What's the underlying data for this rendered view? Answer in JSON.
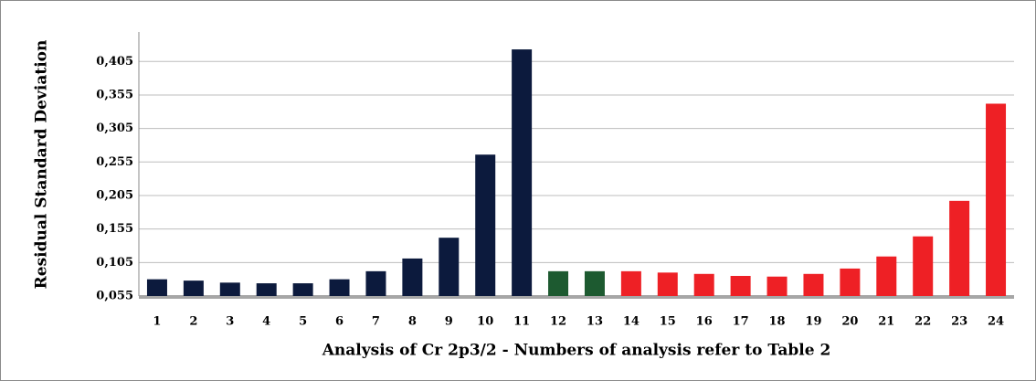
{
  "chart_data": {
    "type": "bar",
    "x_label": "Analysis of Cr 2p3/2 - Numbers of analysis refer to Table 2",
    "y_label": "Residual Standard Deviation",
    "categories": [
      "1",
      "2",
      "3",
      "4",
      "5",
      "6",
      "7",
      "8",
      "9",
      "10",
      "11",
      "12",
      "13",
      "14",
      "15",
      "16",
      "17",
      "18",
      "19",
      "20",
      "21",
      "22",
      "23",
      "24"
    ],
    "values": [
      0.08,
      0.078,
      0.075,
      0.074,
      0.074,
      0.08,
      0.092,
      0.111,
      0.142,
      0.266,
      0.423,
      0.092,
      0.092,
      0.092,
      0.09,
      0.088,
      0.085,
      0.084,
      0.088,
      0.096,
      0.114,
      0.144,
      0.197,
      0.342
    ],
    "colors": [
      "#0c1a3d",
      "#0c1a3d",
      "#0c1a3d",
      "#0c1a3d",
      "#0c1a3d",
      "#0c1a3d",
      "#0c1a3d",
      "#0c1a3d",
      "#0c1a3d",
      "#0c1a3d",
      "#0c1a3d",
      "#1d5a30",
      "#1d5a30",
      "#ee2025",
      "#ee2025",
      "#ee2025",
      "#ee2025",
      "#ee2025",
      "#ee2025",
      "#ee2025",
      "#ee2025",
      "#ee2025",
      "#ee2025",
      "#ee2025"
    ],
    "ylim": [
      0.055,
      0.449
    ],
    "yticks": [
      {
        "value": 0.055,
        "label": "0,055"
      },
      {
        "value": 0.105,
        "label": "0,105"
      },
      {
        "value": 0.155,
        "label": "0,155"
      },
      {
        "value": 0.205,
        "label": "0,205"
      },
      {
        "value": 0.255,
        "label": "0,255"
      },
      {
        "value": 0.305,
        "label": "0,305"
      },
      {
        "value": 0.355,
        "label": "0,355"
      },
      {
        "value": 0.405,
        "label": "0,405"
      }
    ],
    "grid": true
  }
}
